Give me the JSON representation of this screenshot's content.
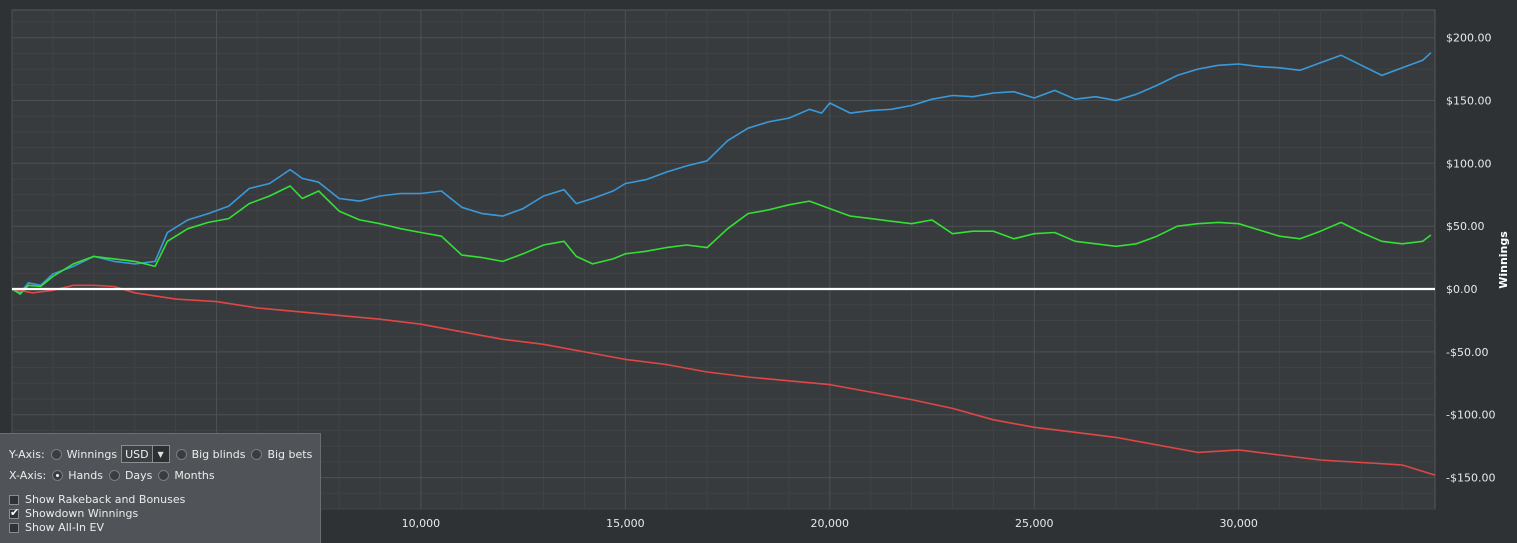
{
  "chart_data": {
    "type": "line",
    "ylabel": "Winnings",
    "xlabel": "",
    "xlim": [
      0,
      34800
    ],
    "ylim": [
      -175,
      222
    ],
    "x_ticks": [
      10000,
      15000,
      20000,
      25000,
      30000
    ],
    "x_tick_labels": [
      "10,000",
      "15,000",
      "20,000",
      "25,000",
      "30,000"
    ],
    "y_ticks": [
      200,
      150,
      100,
      50,
      0,
      -50,
      -100,
      -150
    ],
    "y_tick_labels": [
      "$200.00",
      "$150.00",
      "$100.00",
      "$50.00",
      "$0.00",
      "-$50.00",
      "-$100.00",
      "-$150.00"
    ],
    "grid": true,
    "series": [
      {
        "color": "#3a9ad9",
        "points": [
          [
            0,
            0
          ],
          [
            200,
            -3
          ],
          [
            400,
            5
          ],
          [
            700,
            3
          ],
          [
            1000,
            12
          ],
          [
            1500,
            18
          ],
          [
            2000,
            26
          ],
          [
            2500,
            22
          ],
          [
            3000,
            20
          ],
          [
            3500,
            22
          ],
          [
            3800,
            45
          ],
          [
            4300,
            55
          ],
          [
            4800,
            60
          ],
          [
            5300,
            66
          ],
          [
            5800,
            80
          ],
          [
            6300,
            84
          ],
          [
            6800,
            95
          ],
          [
            7100,
            88
          ],
          [
            7500,
            85
          ],
          [
            8000,
            72
          ],
          [
            8500,
            70
          ],
          [
            9000,
            74
          ],
          [
            9500,
            76
          ],
          [
            10000,
            76
          ],
          [
            10500,
            78
          ],
          [
            11000,
            65
          ],
          [
            11500,
            60
          ],
          [
            12000,
            58
          ],
          [
            12500,
            64
          ],
          [
            13000,
            74
          ],
          [
            13500,
            79
          ],
          [
            13800,
            68
          ],
          [
            14200,
            72
          ],
          [
            14700,
            78
          ],
          [
            15000,
            84
          ],
          [
            15500,
            87
          ],
          [
            16000,
            93
          ],
          [
            16500,
            98
          ],
          [
            17000,
            102
          ],
          [
            17500,
            118
          ],
          [
            18000,
            128
          ],
          [
            18500,
            133
          ],
          [
            19000,
            136
          ],
          [
            19500,
            143
          ],
          [
            19800,
            140
          ],
          [
            20000,
            148
          ],
          [
            20500,
            140
          ],
          [
            21000,
            142
          ],
          [
            21500,
            143
          ],
          [
            22000,
            146
          ],
          [
            22500,
            151
          ],
          [
            23000,
            154
          ],
          [
            23500,
            153
          ],
          [
            24000,
            156
          ],
          [
            24500,
            157
          ],
          [
            25000,
            152
          ],
          [
            25500,
            158
          ],
          [
            26000,
            151
          ],
          [
            26500,
            153
          ],
          [
            27000,
            150
          ],
          [
            27500,
            155
          ],
          [
            28000,
            162
          ],
          [
            28500,
            170
          ],
          [
            29000,
            175
          ],
          [
            29500,
            178
          ],
          [
            30000,
            179
          ],
          [
            30500,
            177
          ],
          [
            31000,
            176
          ],
          [
            31500,
            174
          ],
          [
            32000,
            180
          ],
          [
            32500,
            186
          ],
          [
            33000,
            178
          ],
          [
            33500,
            170
          ],
          [
            34000,
            176
          ],
          [
            34500,
            182
          ],
          [
            34700,
            188
          ]
        ]
      },
      {
        "color": "#33e033",
        "points": [
          [
            0,
            0
          ],
          [
            200,
            -4
          ],
          [
            400,
            3
          ],
          [
            700,
            2
          ],
          [
            1000,
            10
          ],
          [
            1500,
            20
          ],
          [
            2000,
            26
          ],
          [
            2500,
            24
          ],
          [
            3000,
            22
          ],
          [
            3500,
            18
          ],
          [
            3800,
            38
          ],
          [
            4300,
            48
          ],
          [
            4800,
            53
          ],
          [
            5300,
            56
          ],
          [
            5800,
            68
          ],
          [
            6300,
            74
          ],
          [
            6800,
            82
          ],
          [
            7100,
            72
          ],
          [
            7500,
            78
          ],
          [
            8000,
            62
          ],
          [
            8500,
            55
          ],
          [
            9000,
            52
          ],
          [
            9500,
            48
          ],
          [
            10000,
            45
          ],
          [
            10500,
            42
          ],
          [
            11000,
            27
          ],
          [
            11500,
            25
          ],
          [
            12000,
            22
          ],
          [
            12500,
            28
          ],
          [
            13000,
            35
          ],
          [
            13500,
            38
          ],
          [
            13800,
            26
          ],
          [
            14200,
            20
          ],
          [
            14700,
            24
          ],
          [
            15000,
            28
          ],
          [
            15500,
            30
          ],
          [
            16000,
            33
          ],
          [
            16500,
            35
          ],
          [
            17000,
            33
          ],
          [
            17500,
            48
          ],
          [
            18000,
            60
          ],
          [
            18500,
            63
          ],
          [
            19000,
            67
          ],
          [
            19500,
            70
          ],
          [
            20000,
            64
          ],
          [
            20500,
            58
          ],
          [
            21000,
            56
          ],
          [
            21500,
            54
          ],
          [
            22000,
            52
          ],
          [
            22500,
            55
          ],
          [
            23000,
            44
          ],
          [
            23500,
            46
          ],
          [
            24000,
            46
          ],
          [
            24500,
            40
          ],
          [
            25000,
            44
          ],
          [
            25500,
            45
          ],
          [
            26000,
            38
          ],
          [
            26500,
            36
          ],
          [
            27000,
            34
          ],
          [
            27500,
            36
          ],
          [
            28000,
            42
          ],
          [
            28500,
            50
          ],
          [
            29000,
            52
          ],
          [
            29500,
            53
          ],
          [
            30000,
            52
          ],
          [
            30500,
            47
          ],
          [
            31000,
            42
          ],
          [
            31500,
            40
          ],
          [
            32000,
            46
          ],
          [
            32500,
            53
          ],
          [
            33000,
            45
          ],
          [
            33500,
            38
          ],
          [
            34000,
            36
          ],
          [
            34500,
            38
          ],
          [
            34700,
            43
          ]
        ]
      },
      {
        "color": "#e04646",
        "points": [
          [
            0,
            0
          ],
          [
            500,
            -3
          ],
          [
            1000,
            -1
          ],
          [
            1500,
            3
          ],
          [
            2000,
            3
          ],
          [
            2500,
            2
          ],
          [
            3000,
            -3
          ],
          [
            4000,
            -8
          ],
          [
            5000,
            -10
          ],
          [
            6000,
            -15
          ],
          [
            7000,
            -18
          ],
          [
            8000,
            -21
          ],
          [
            9000,
            -24
          ],
          [
            10000,
            -28
          ],
          [
            11000,
            -34
          ],
          [
            12000,
            -40
          ],
          [
            13000,
            -44
          ],
          [
            14000,
            -50
          ],
          [
            15000,
            -56
          ],
          [
            16000,
            -60
          ],
          [
            17000,
            -66
          ],
          [
            18000,
            -70
          ],
          [
            19000,
            -73
          ],
          [
            20000,
            -76
          ],
          [
            21000,
            -82
          ],
          [
            22000,
            -88
          ],
          [
            23000,
            -95
          ],
          [
            24000,
            -104
          ],
          [
            25000,
            -110
          ],
          [
            26000,
            -114
          ],
          [
            27000,
            -118
          ],
          [
            28000,
            -124
          ],
          [
            29000,
            -130
          ],
          [
            30000,
            -128
          ],
          [
            31000,
            -132
          ],
          [
            32000,
            -136
          ],
          [
            33000,
            -138
          ],
          [
            34000,
            -140
          ],
          [
            34800,
            -148
          ]
        ]
      },
      {
        "color": "#ffffff",
        "points": [
          [
            0,
            0
          ],
          [
            34800,
            0
          ]
        ]
      }
    ]
  },
  "controls": {
    "y_axis_label": "Y-Axis:",
    "winnings_label": "Winnings",
    "currency": "USD",
    "big_blinds_label": "Big blinds",
    "big_bets_label": "Big bets",
    "x_axis_label": "X-Axis:",
    "hands_label": "Hands",
    "days_label": "Days",
    "months_label": "Months",
    "show_rakeback_label": "Show Rakeback and Bonuses",
    "showdown_winnings_label": "Showdown Winnings",
    "show_allin_ev_label": "Show All-In EV",
    "x_axis_selected": "Hands",
    "showdown_checked": true,
    "rakeback_checked": false,
    "allin_checked": false
  }
}
